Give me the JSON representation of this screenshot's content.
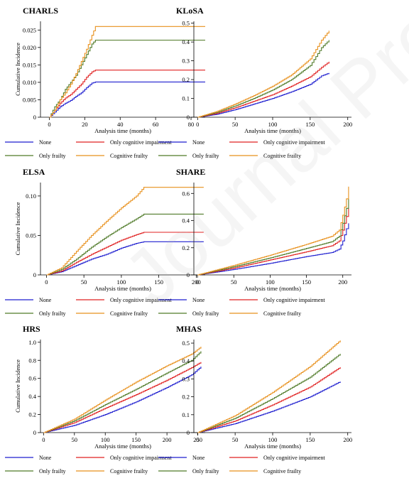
{
  "watermark": "Journal Pre-proof",
  "legend_entries": [
    {
      "name": "None",
      "color": "#1f1fcf"
    },
    {
      "name": "Only cognitive impairment",
      "color": "#e02020"
    },
    {
      "name": "Only frailty",
      "color": "#4f7a28"
    },
    {
      "name": "Cognitive frailty",
      "color": "#e8901c"
    }
  ],
  "chart_data": [
    {
      "type": "line",
      "title": "CHARLS",
      "xlabel": "Analysis time (months)",
      "ylabel": "Cumulative Incidence",
      "xlim": [
        -5,
        88
      ],
      "ylim": [
        0,
        0.0275
      ],
      "xticks": [
        0,
        20,
        40,
        60,
        80
      ],
      "yticks": [
        0,
        0.005,
        0.01,
        0.015,
        0.02,
        0.025
      ],
      "ytick_labels": [
        "0",
        "0.005",
        "0.010",
        "0.015",
        "0.020",
        "0.025"
      ],
      "series": [
        {
          "name": "None",
          "x": [
            0,
            3,
            6,
            9,
            12,
            15,
            18,
            21,
            24,
            26,
            88
          ],
          "y": [
            0,
            0.0015,
            0.003,
            0.004,
            0.0048,
            0.006,
            0.007,
            0.0085,
            0.0098,
            0.0101,
            0.0101
          ]
        },
        {
          "name": "Only cognitive impairment",
          "x": [
            0,
            3,
            6,
            9,
            12,
            15,
            18,
            21,
            24,
            26,
            88
          ],
          "y": [
            0,
            0.002,
            0.004,
            0.0055,
            0.0065,
            0.008,
            0.0095,
            0.0115,
            0.013,
            0.0135,
            0.0135
          ]
        },
        {
          "name": "Only frailty",
          "x": [
            0,
            3,
            6,
            9,
            12,
            15,
            18,
            21,
            24,
            26,
            88
          ],
          "y": [
            0,
            0.003,
            0.005,
            0.008,
            0.01,
            0.012,
            0.015,
            0.018,
            0.021,
            0.0221,
            0.0221
          ]
        },
        {
          "name": "Cognitive frailty",
          "x": [
            0,
            3,
            6,
            9,
            12,
            15,
            18,
            21,
            24,
            26,
            88
          ],
          "y": [
            0,
            0.002,
            0.005,
            0.007,
            0.0095,
            0.0125,
            0.016,
            0.0195,
            0.0235,
            0.026,
            0.026
          ]
        }
      ]
    },
    {
      "type": "line",
      "title": "KLoSA",
      "xlabel": "Analysis time (months)",
      "ylabel": "",
      "xlim": [
        -5,
        205
      ],
      "ylim": [
        0,
        0.51
      ],
      "xticks": [
        0,
        50,
        100,
        150,
        200
      ],
      "yticks": [
        0,
        0.1,
        0.2,
        0.3,
        0.4,
        0.5
      ],
      "ytick_labels": [
        "0",
        "0.1",
        "0.2",
        "0.3",
        "0.4",
        "0.5"
      ],
      "series": [
        {
          "name": "None",
          "x": [
            0,
            25,
            50,
            75,
            100,
            125,
            150,
            165,
            175
          ],
          "y": [
            0,
            0.015,
            0.04,
            0.07,
            0.1,
            0.135,
            0.175,
            0.22,
            0.235
          ]
        },
        {
          "name": "Only cognitive impairment",
          "x": [
            0,
            25,
            50,
            75,
            100,
            125,
            150,
            165,
            175
          ],
          "y": [
            0,
            0.02,
            0.05,
            0.085,
            0.12,
            0.165,
            0.215,
            0.265,
            0.295
          ]
        },
        {
          "name": "Only frailty",
          "x": [
            0,
            25,
            50,
            75,
            100,
            125,
            150,
            165,
            175
          ],
          "y": [
            0,
            0.025,
            0.06,
            0.1,
            0.145,
            0.2,
            0.275,
            0.37,
            0.41
          ]
        },
        {
          "name": "Cognitive frailty",
          "x": [
            0,
            25,
            50,
            75,
            100,
            125,
            150,
            165,
            175
          ],
          "y": [
            0,
            0.03,
            0.07,
            0.115,
            0.165,
            0.225,
            0.31,
            0.41,
            0.46
          ]
        }
      ]
    },
    {
      "type": "line",
      "title": "ELSA",
      "xlabel": "Analysis time (months)",
      "ylabel": "Cumulative Incidence",
      "xlim": [
        -8,
        212
      ],
      "ylim": [
        0,
        0.117
      ],
      "xticks": [
        0,
        50,
        100,
        150,
        200
      ],
      "yticks": [
        0,
        0.05,
        0.1
      ],
      "ytick_labels": [
        "0",
        "0.05",
        "0.10"
      ],
      "series": [
        {
          "name": "None",
          "x": [
            0,
            20,
            40,
            60,
            80,
            100,
            120,
            130,
            210
          ],
          "y": [
            0,
            0.004,
            0.012,
            0.02,
            0.026,
            0.034,
            0.04,
            0.042,
            0.042
          ]
        },
        {
          "name": "Only cognitive impairment",
          "x": [
            0,
            20,
            40,
            60,
            80,
            100,
            120,
            130,
            210
          ],
          "y": [
            0,
            0.005,
            0.016,
            0.026,
            0.035,
            0.044,
            0.051,
            0.054,
            0.054
          ]
        },
        {
          "name": "Only frailty",
          "x": [
            0,
            20,
            40,
            60,
            80,
            100,
            120,
            130,
            210
          ],
          "y": [
            0,
            0.007,
            0.02,
            0.035,
            0.048,
            0.06,
            0.071,
            0.077,
            0.077
          ]
        },
        {
          "name": "Cognitive frailty",
          "x": [
            0,
            20,
            40,
            60,
            80,
            100,
            120,
            130,
            210
          ],
          "y": [
            0,
            0.009,
            0.03,
            0.05,
            0.068,
            0.085,
            0.1,
            0.111,
            0.111
          ]
        }
      ]
    },
    {
      "type": "line",
      "title": "SHARE",
      "xlabel": "Analysis time (months)",
      "ylabel": "",
      "xlim": [
        -5,
        212
      ],
      "ylim": [
        0,
        0.68
      ],
      "xticks": [
        0,
        50,
        100,
        150,
        200
      ],
      "yticks": [
        0,
        0.2,
        0.4,
        0.6
      ],
      "ytick_labels": [
        "0",
        "0.2",
        "0.4",
        "0.6"
      ],
      "series": [
        {
          "name": "None",
          "x": [
            0,
            50,
            100,
            150,
            185,
            195,
            200,
            205,
            208
          ],
          "y": [
            0,
            0.04,
            0.085,
            0.135,
            0.165,
            0.19,
            0.25,
            0.34,
            0.38
          ]
        },
        {
          "name": "Only cognitive impairment",
          "x": [
            0,
            50,
            100,
            150,
            185,
            195,
            200,
            205,
            208
          ],
          "y": [
            0,
            0.05,
            0.11,
            0.17,
            0.215,
            0.25,
            0.33,
            0.43,
            0.49
          ]
        },
        {
          "name": "Only frailty",
          "x": [
            0,
            50,
            100,
            150,
            185,
            195,
            200,
            205,
            208
          ],
          "y": [
            0,
            0.06,
            0.125,
            0.195,
            0.245,
            0.285,
            0.38,
            0.49,
            0.56
          ]
        },
        {
          "name": "Cognitive frailty",
          "x": [
            0,
            50,
            100,
            150,
            185,
            195,
            200,
            205,
            208
          ],
          "y": [
            0,
            0.07,
            0.145,
            0.225,
            0.285,
            0.33,
            0.44,
            0.56,
            0.65
          ]
        }
      ]
    },
    {
      "type": "line",
      "title": "HRS",
      "xlabel": "Analysis time (months)",
      "ylabel": "Cumulative Incidence",
      "xlim": [
        -5,
        262
      ],
      "ylim": [
        0,
        1.03
      ],
      "xticks": [
        0,
        50,
        100,
        150,
        200,
        250
      ],
      "yticks": [
        0,
        0.2,
        0.4,
        0.6,
        0.8,
        1.0
      ],
      "ytick_labels": [
        "0",
        "0.2",
        "0.4",
        "0.6",
        "0.8",
        "1.0"
      ],
      "series": [
        {
          "name": "None",
          "x": [
            0,
            50,
            100,
            150,
            200,
            240,
            255
          ],
          "y": [
            0,
            0.08,
            0.2,
            0.34,
            0.5,
            0.64,
            0.73
          ]
        },
        {
          "name": "Only cognitive impairment",
          "x": [
            0,
            50,
            100,
            150,
            200,
            240,
            255
          ],
          "y": [
            0,
            0.11,
            0.27,
            0.42,
            0.58,
            0.72,
            0.78
          ]
        },
        {
          "name": "Only frailty",
          "x": [
            0,
            50,
            100,
            150,
            200,
            240,
            255
          ],
          "y": [
            0,
            0.13,
            0.31,
            0.48,
            0.66,
            0.8,
            0.9
          ]
        },
        {
          "name": "Cognitive frailty",
          "x": [
            0,
            50,
            100,
            150,
            200,
            240,
            255
          ],
          "y": [
            0,
            0.15,
            0.36,
            0.56,
            0.74,
            0.87,
            0.95
          ]
        }
      ]
    },
    {
      "type": "line",
      "title": "MHAS",
      "xlabel": "Analysis time (months)",
      "ylabel": "",
      "xlim": [
        -5,
        205
      ],
      "ylim": [
        0,
        0.52
      ],
      "xticks": [
        0,
        50,
        100,
        150,
        200
      ],
      "yticks": [
        0,
        0.1,
        0.2,
        0.3,
        0.4,
        0.5
      ],
      "ytick_labels": [
        "0",
        "0.1",
        "0.2",
        "0.3",
        "0.4",
        "0.5"
      ],
      "series": [
        {
          "name": "None",
          "x": [
            0,
            50,
            100,
            150,
            190
          ],
          "y": [
            0,
            0.05,
            0.12,
            0.2,
            0.285
          ]
        },
        {
          "name": "Only cognitive impairment",
          "x": [
            0,
            50,
            100,
            150,
            190
          ],
          "y": [
            0,
            0.065,
            0.155,
            0.255,
            0.365
          ]
        },
        {
          "name": "Only frailty",
          "x": [
            0,
            50,
            100,
            150,
            190
          ],
          "y": [
            0,
            0.08,
            0.19,
            0.31,
            0.44
          ]
        },
        {
          "name": "Cognitive frailty",
          "x": [
            0,
            50,
            100,
            150,
            190
          ],
          "y": [
            0,
            0.095,
            0.225,
            0.37,
            0.515
          ]
        }
      ]
    }
  ]
}
